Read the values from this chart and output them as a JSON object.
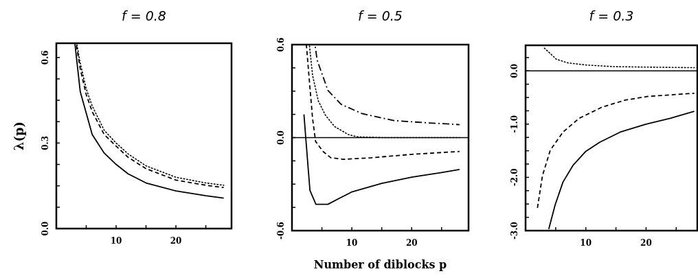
{
  "chart_data": [
    {
      "type": "line",
      "title": "f = 0.8",
      "ylabel": "λ(p)",
      "xlim": [
        0,
        29.3
      ],
      "ylim": [
        0,
        0.65
      ],
      "xticks": [
        {
          "value": 5,
          "label": null
        },
        {
          "value": 10,
          "label": "10"
        },
        {
          "value": 15,
          "label": null
        },
        {
          "value": 20,
          "label": "20"
        },
        {
          "value": 25,
          "label": null
        }
      ],
      "yticks": [
        {
          "value": 0,
          "label": "0.0"
        },
        {
          "value": 0.075,
          "label": null
        },
        {
          "value": 0.15,
          "label": null
        },
        {
          "value": 0.225,
          "label": null
        },
        0.3,
        {
          "value": 0.375,
          "label": null
        },
        {
          "value": 0.45,
          "label": null
        },
        {
          "value": 0.525,
          "label": null
        },
        0.6
      ],
      "series": [
        {
          "color": "#000000",
          "line_style": "solid",
          "x": [
            3.1,
            4,
            6,
            8,
            10,
            12,
            15,
            20,
            25,
            28
          ],
          "values": [
            0.65,
            0.48,
            0.33,
            0.265,
            0.225,
            0.192,
            0.16,
            0.132,
            0.115,
            0.107
          ]
        },
        {
          "color": "#000000",
          "line_style": "dashed",
          "x": [
            3.3,
            4,
            5,
            6,
            8,
            10,
            12,
            15,
            20,
            25,
            28
          ],
          "values": [
            0.65,
            0.56,
            0.47,
            0.41,
            0.33,
            0.289,
            0.25,
            0.21,
            0.17,
            0.152,
            0.144
          ]
        },
        {
          "color": "#000000",
          "line_style": "dotted",
          "x": [
            3.4,
            4,
            5,
            6,
            8,
            10,
            12,
            15,
            20,
            25,
            28
          ],
          "values": [
            0.65,
            0.58,
            0.49,
            0.43,
            0.345,
            0.3,
            0.262,
            0.22,
            0.18,
            0.16,
            0.152
          ]
        }
      ]
    },
    {
      "type": "line",
      "title": "f = 0.5",
      "xlabel": "Number of diblocks  p",
      "xlim": [
        0,
        29.5
      ],
      "ylim": [
        -0.6,
        0.6
      ],
      "xticks": [
        {
          "value": 5,
          "label": null
        },
        {
          "value": 10,
          "label": "10"
        },
        {
          "value": 15,
          "label": null
        },
        {
          "value": 20,
          "label": "20"
        },
        {
          "value": 25,
          "label": null
        }
      ],
      "yticks": [
        -0.6,
        {
          "value": -0.45,
          "label": null
        },
        {
          "value": -0.3,
          "label": null
        },
        {
          "value": -0.15,
          "label": null
        },
        {
          "value": 0,
          "label": "0.0"
        },
        {
          "value": 0.15,
          "label": null
        },
        {
          "value": 0.3,
          "label": null
        },
        {
          "value": 0.45,
          "label": null
        },
        0.6
      ],
      "ref_lines": [
        {
          "axis": "y",
          "value": 0,
          "color": "#000000"
        }
      ],
      "series": [
        {
          "color": "#000000",
          "line_style": "solid",
          "x": [
            2,
            2.3,
            3,
            4,
            6,
            8,
            10,
            15,
            20,
            25,
            28
          ],
          "values": [
            0.15,
            0,
            -0.34,
            -0.43,
            -0.43,
            -0.39,
            -0.35,
            -0.295,
            -0.255,
            -0.225,
            -0.205
          ]
        },
        {
          "color": "#000000",
          "line_style": "dashed",
          "x": [
            2.4,
            3.05,
            3.45,
            3.95,
            5.2,
            6.5,
            8.6,
            13.2,
            20,
            28
          ],
          "values": [
            0.6,
            0.3,
            0.12,
            -0.025,
            -0.09,
            -0.13,
            -0.14,
            -0.13,
            -0.108,
            -0.089
          ]
        },
        {
          "color": "#000000",
          "line_style": "dotted",
          "x": [
            2.9,
            3.45,
            4.4,
            5.55,
            7.1,
            9.4,
            10.9,
            15,
            28
          ],
          "values": [
            0.6,
            0.4,
            0.237,
            0.147,
            0.072,
            0.02,
            0.005,
            0,
            0
          ]
        },
        {
          "color": "#000000",
          "line_style": "dashdot",
          "x": [
            3.85,
            4.2,
            6,
            8.2,
            11.7,
            17,
            22.8,
            28
          ],
          "values": [
            0.6,
            0.5,
            0.305,
            0.215,
            0.155,
            0.11,
            0.095,
            0.084
          ]
        }
      ]
    },
    {
      "type": "line",
      "title": "f = 0.3",
      "xlim": [
        0,
        28.5
      ],
      "ylim": [
        -3,
        0.48
      ],
      "xticks": [
        {
          "value": 5,
          "label": null
        },
        {
          "value": 10,
          "label": "10"
        },
        {
          "value": 15,
          "label": null
        },
        {
          "value": 20,
          "label": "20"
        },
        {
          "value": 25,
          "label": null
        }
      ],
      "yticks": [
        {
          "value": -3,
          "label": "-3.0"
        },
        {
          "value": -2.75,
          "label": null
        },
        {
          "value": -2.5,
          "label": null
        },
        {
          "value": -2.25,
          "label": null
        },
        {
          "value": -2,
          "label": "-2.0"
        },
        {
          "value": -1.75,
          "label": null
        },
        {
          "value": -1.5,
          "label": null
        },
        {
          "value": -1.25,
          "label": null
        },
        {
          "value": -1,
          "label": "-1.0"
        },
        {
          "value": -0.75,
          "label": null
        },
        {
          "value": -0.5,
          "label": null
        },
        {
          "value": -0.25,
          "label": null
        },
        {
          "value": 0,
          "label": "0.0"
        },
        {
          "value": 0.25,
          "label": null
        }
      ],
      "ref_lines": [
        {
          "axis": "y",
          "value": 0,
          "color": "#000000"
        }
      ],
      "series": [
        {
          "color": "#000000",
          "line_style": "solid",
          "x": [
            3.85,
            4.9,
            6.2,
            7.9,
            10,
            12.3,
            15.7,
            20,
            24,
            28
          ],
          "values": [
            -2.97,
            -2.52,
            -2.09,
            -1.77,
            -1.51,
            -1.34,
            -1.15,
            -1,
            -0.89,
            -0.76
          ]
        },
        {
          "color": "#000000",
          "line_style": "dashed",
          "x": [
            1.95,
            2.8,
            4.1,
            6.2,
            8.9,
            12.7,
            16.5,
            20.3,
            28
          ],
          "values": [
            -2.59,
            -1.97,
            -1.49,
            -1.15,
            -0.89,
            -0.68,
            -0.55,
            -0.48,
            -0.42
          ]
        },
        {
          "color": "#000000",
          "line_style": "dotted",
          "x": [
            3,
            5.1,
            7,
            10,
            14.6,
            20.3,
            28
          ],
          "values": [
            0.44,
            0.22,
            0.15,
            0.11,
            0.08,
            0.07,
            0.06
          ]
        }
      ]
    }
  ]
}
